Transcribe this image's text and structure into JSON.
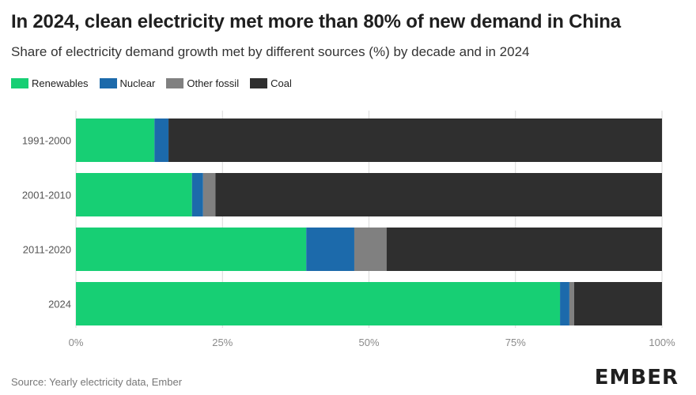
{
  "header": {
    "title": "In 2024, clean electricity met more than 80% of new demand in China",
    "subtitle": "Share of electricity demand growth met by different sources (%) by decade and in 2024"
  },
  "footer": {
    "source": "Source: Yearly electricity data, Ember",
    "brand": "EMBER"
  },
  "colors": {
    "Renewables": "#17cf74",
    "Nuclear": "#1c6aab",
    "Other fossil": "#808080",
    "Coal": "#2f2f2f",
    "gridline": "#d9d9d9"
  },
  "chart_data": {
    "type": "bar",
    "orientation": "horizontal",
    "stacked": true,
    "title": "In 2024, clean electricity met more than 80% of new demand in China",
    "subtitle": "Share of electricity demand growth met by different sources (%) by decade and in 2024",
    "categories": [
      "1991-2000",
      "2001-2010",
      "2011-2020",
      "2024"
    ],
    "series": [
      {
        "name": "Renewables",
        "values": [
          13.4,
          19.8,
          39.3,
          82.6
        ]
      },
      {
        "name": "Nuclear",
        "values": [
          2.4,
          1.9,
          8.2,
          1.6
        ]
      },
      {
        "name": "Other fossil",
        "values": [
          0.0,
          2.1,
          5.5,
          0.8
        ]
      },
      {
        "name": "Coal",
        "values": [
          84.2,
          76.2,
          47.0,
          15.0
        ]
      }
    ],
    "xlim": [
      0,
      100
    ],
    "xticks": [
      "0%",
      "25%",
      "50%",
      "75%",
      "100%"
    ],
    "xtick_values": [
      0,
      25,
      50,
      75,
      100
    ],
    "grid": true,
    "legend_position": "top-left"
  }
}
